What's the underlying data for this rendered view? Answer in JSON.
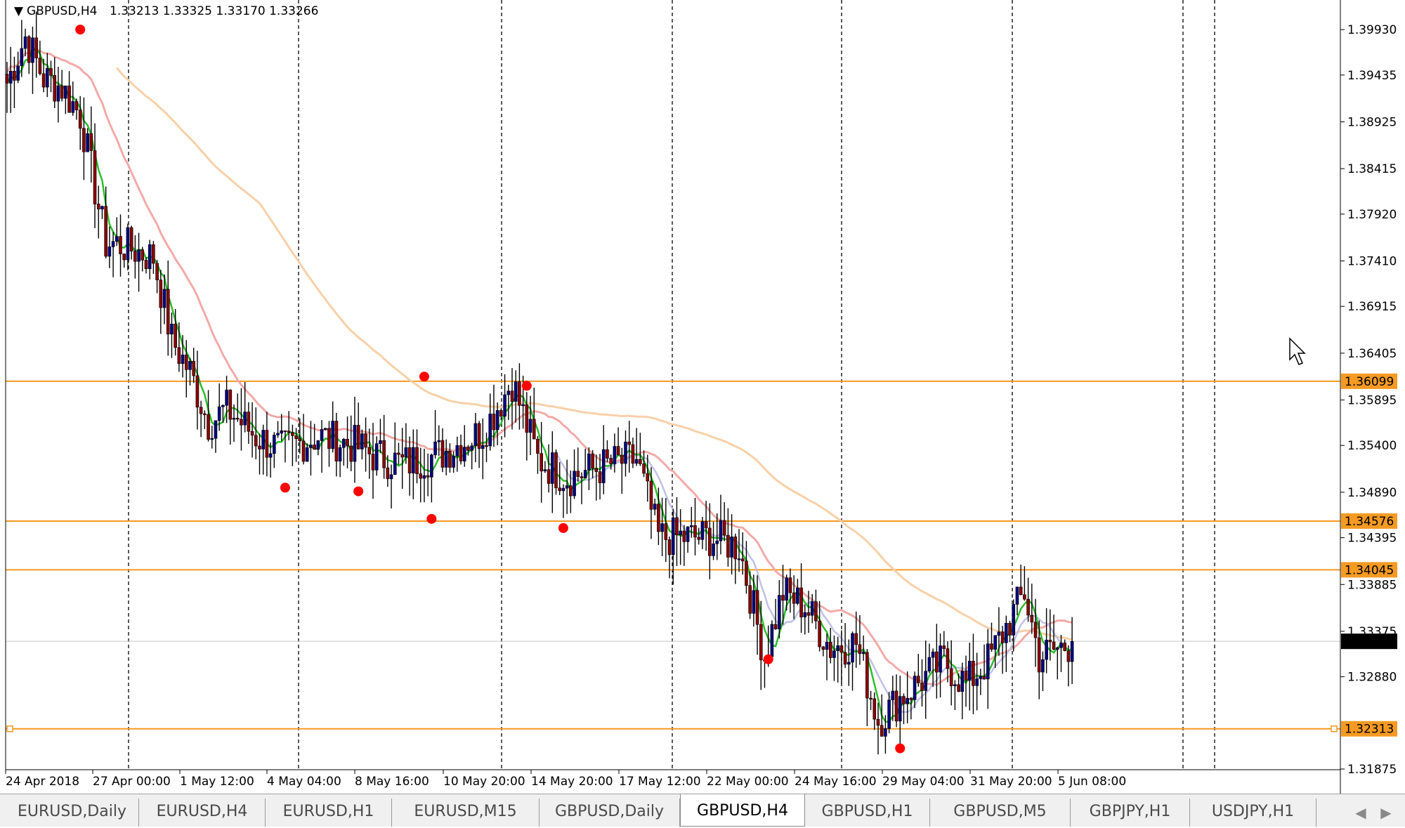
{
  "header": {
    "triangle": "▼",
    "symbol": "GBPUSD,H4",
    "ohlc": "1.33213 1.33325 1.33170 1.33266"
  },
  "tabs": [
    {
      "label": "EURUSD,Daily",
      "active": false
    },
    {
      "label": "EURUSD,H4",
      "active": false
    },
    {
      "label": "EURUSD,H1",
      "active": false
    },
    {
      "label": "EURUSD,M15",
      "active": false
    },
    {
      "label": "GBPUSD,Daily",
      "active": false
    },
    {
      "label": "GBPUSD,H4",
      "active": true
    },
    {
      "label": "GBPUSD,H1",
      "active": false
    },
    {
      "label": "GBPUSD,M5",
      "active": false
    },
    {
      "label": "GBPJPY,H1",
      "active": false
    },
    {
      "label": "USDJPY,H1",
      "active": false
    }
  ],
  "tab_arrows": {
    "left": "◀",
    "right": "▶"
  },
  "colors": {
    "bull_candle": "#000080",
    "bear_candle": "#8b0000",
    "ma_fast": "#2ebd2e",
    "ma_mid": "#f2aaa8",
    "ma_slow": "#f8d0a8",
    "ma_lavender": "#c0c0e8",
    "hline": "#f59a23",
    "current_price_bg": "#000000",
    "fractal": "#ff0000",
    "grid": "#000000"
  },
  "chart_data": {
    "type": "candlestick",
    "symbol": "GBPUSD",
    "timeframe": "H4",
    "ylim": [
      1.31875,
      1.40237
    ],
    "y_ticks": [
      "1.39930",
      "1.39435",
      "1.38925",
      "1.38415",
      "1.37920",
      "1.37410",
      "1.36915",
      "1.36405",
      "1.35895",
      "1.35400",
      "1.34890",
      "1.34395",
      "1.33885",
      "1.33375",
      "1.32880",
      "1.31875"
    ],
    "x_labels": [
      "24 Apr 2018",
      "27 Apr 00:00",
      "1 May 12:00",
      "4 May 04:00",
      "8 May 16:00",
      "10 May 20:00",
      "14 May 20:00",
      "17 May 12:00",
      "22 May 00:00",
      "24 May 16:00",
      "29 May 04:00",
      "31 May 20:00",
      "5 Jun 08:00"
    ],
    "period_separators_after_label": true,
    "horizontal_lines": [
      {
        "price": "1.36099",
        "value": 1.36099
      },
      {
        "price": "1.34576",
        "value": 1.34576
      },
      {
        "price": "1.34045",
        "value": 1.34045
      },
      {
        "price": "1.32313",
        "value": 1.32313
      }
    ],
    "current_price": {
      "price": "1.33266",
      "value": 1.33266
    },
    "close_path": [
      [
        0,
        1.3935
      ],
      [
        5,
        1.3985
      ],
      [
        10,
        1.394
      ],
      [
        15,
        1.393
      ],
      [
        20,
        1.39
      ],
      [
        27,
        1.376
      ],
      [
        30,
        1.376
      ],
      [
        40,
        1.3745
      ],
      [
        45,
        1.3655
      ],
      [
        50,
        1.362
      ],
      [
        55,
        1.3565
      ],
      [
        60,
        1.358
      ],
      [
        68,
        1.355
      ],
      [
        75,
        1.3535
      ],
      [
        85,
        1.355
      ],
      [
        95,
        1.354
      ],
      [
        100,
        1.353
      ],
      [
        108,
        1.352
      ],
      [
        118,
        1.353
      ],
      [
        130,
        1.3555
      ],
      [
        138,
        1.361
      ],
      [
        145,
        1.3525
      ],
      [
        153,
        1.3505
      ],
      [
        165,
        1.352
      ],
      [
        172,
        1.3525
      ],
      [
        178,
        1.344
      ],
      [
        185,
        1.344
      ],
      [
        192,
        1.344
      ],
      [
        200,
        1.343
      ],
      [
        207,
        1.331
      ],
      [
        212,
        1.338
      ],
      [
        218,
        1.3365
      ],
      [
        225,
        1.332
      ],
      [
        232,
        1.3325
      ],
      [
        238,
        1.324
      ],
      [
        244,
        1.3265
      ],
      [
        250,
        1.3285
      ],
      [
        256,
        1.3305
      ],
      [
        262,
        1.328
      ],
      [
        268,
        1.3305
      ],
      [
        274,
        1.335
      ],
      [
        278,
        1.338
      ],
      [
        282,
        1.331
      ],
      [
        288,
        1.332
      ],
      [
        292,
        1.3326
      ]
    ],
    "fractals": [
      {
        "label_index": 0,
        "value": 1.3993,
        "bar": 20
      },
      {
        "value": 1.3494,
        "bar": 76
      },
      {
        "value": 1.349,
        "bar": 96
      },
      {
        "value": 1.3615,
        "bar": 114
      },
      {
        "value": 1.346,
        "bar": 116
      },
      {
        "value": 1.3605,
        "bar": 142
      },
      {
        "value": 1.345,
        "bar": 152
      },
      {
        "value": 1.3307,
        "bar": 208
      },
      {
        "value": 1.321,
        "bar": 244
      }
    ]
  }
}
